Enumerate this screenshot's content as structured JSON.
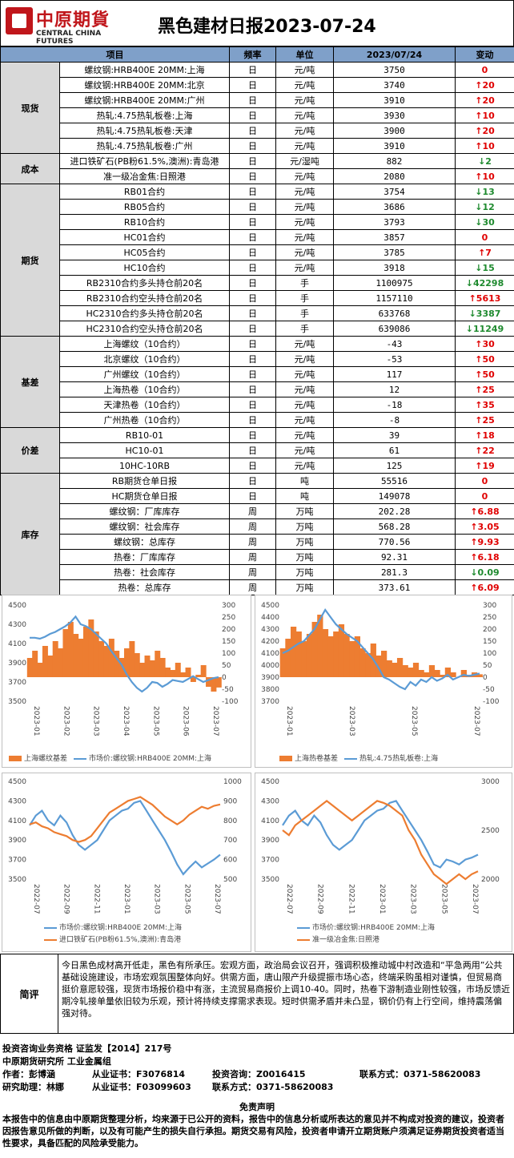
{
  "header": {
    "logo_cn": "中原期貨",
    "logo_en": "CENTRAL CHINA FUTURES",
    "title": "黑色建材日报2023-07-24"
  },
  "table": {
    "columns": [
      "项目",
      "频率",
      "单位",
      "2023/07/24",
      "变动"
    ],
    "groups": [
      {
        "category": "现货",
        "rows": [
          {
            "item": "螺纹钢:HRB400E 20MM:上海",
            "freq": "日",
            "unit": "元/吨",
            "value": "3750",
            "change": "0",
            "dir": "flat"
          },
          {
            "item": "螺纹钢:HRB400E 20MM:北京",
            "freq": "日",
            "unit": "元/吨",
            "value": "3740",
            "change": "20",
            "dir": "up"
          },
          {
            "item": "螺纹钢:HRB400E 20MM:广州",
            "freq": "日",
            "unit": "元/吨",
            "value": "3910",
            "change": "20",
            "dir": "up"
          },
          {
            "item": "热轧:4.75热轧板卷:上海",
            "freq": "日",
            "unit": "元/吨",
            "value": "3930",
            "change": "10",
            "dir": "up"
          },
          {
            "item": "热轧:4.75热轧板卷:天津",
            "freq": "日",
            "unit": "元/吨",
            "value": "3900",
            "change": "20",
            "dir": "up"
          },
          {
            "item": "热轧:4.75热轧板卷:广州",
            "freq": "日",
            "unit": "元/吨",
            "value": "3910",
            "change": "10",
            "dir": "up"
          }
        ]
      },
      {
        "category": "成本",
        "rows": [
          {
            "item": "进口铁矿石(PB粉61.5%,澳洲):青岛港",
            "freq": "日",
            "unit": "元/湿吨",
            "value": "882",
            "change": "2",
            "dir": "down"
          },
          {
            "item": "准一级冶金焦:日照港",
            "freq": "日",
            "unit": "元/吨",
            "value": "2080",
            "change": "10",
            "dir": "up"
          }
        ]
      },
      {
        "category": "期货",
        "rows": [
          {
            "item": "RB01合约",
            "freq": "日",
            "unit": "元/吨",
            "value": "3754",
            "change": "13",
            "dir": "down"
          },
          {
            "item": "RB05合约",
            "freq": "日",
            "unit": "元/吨",
            "value": "3686",
            "change": "12",
            "dir": "down"
          },
          {
            "item": "RB10合约",
            "freq": "日",
            "unit": "元/吨",
            "value": "3793",
            "change": "30",
            "dir": "down"
          },
          {
            "item": "HC01合约",
            "freq": "日",
            "unit": "元/吨",
            "value": "3857",
            "change": "0",
            "dir": "flat"
          },
          {
            "item": "HC05合约",
            "freq": "日",
            "unit": "元/吨",
            "value": "3785",
            "change": "7",
            "dir": "up"
          },
          {
            "item": "HC10合约",
            "freq": "日",
            "unit": "元/吨",
            "value": "3918",
            "change": "15",
            "dir": "down"
          },
          {
            "item": "RB2310合约多头持仓前20名",
            "freq": "日",
            "unit": "手",
            "value": "1100975",
            "change": "42298",
            "dir": "down"
          },
          {
            "item": "RB2310合约空头持仓前20名",
            "freq": "日",
            "unit": "手",
            "value": "1157110",
            "change": "5613",
            "dir": "up"
          },
          {
            "item": "HC2310合约多头持仓前20名",
            "freq": "日",
            "unit": "手",
            "value": "633768",
            "change": "3387",
            "dir": "down"
          },
          {
            "item": "HC2310合约空头持仓前20名",
            "freq": "日",
            "unit": "手",
            "value": "639086",
            "change": "11249",
            "dir": "down"
          }
        ]
      },
      {
        "category": "基差",
        "rows": [
          {
            "item": "上海螺纹（10合约）",
            "freq": "日",
            "unit": "元/吨",
            "value": "-43",
            "change": "30",
            "dir": "up"
          },
          {
            "item": "北京螺纹（10合约）",
            "freq": "日",
            "unit": "元/吨",
            "value": "-53",
            "change": "50",
            "dir": "up"
          },
          {
            "item": "广州螺纹（10合约）",
            "freq": "日",
            "unit": "元/吨",
            "value": "117",
            "change": "50",
            "dir": "up"
          },
          {
            "item": "上海热卷（10合约）",
            "freq": "日",
            "unit": "元/吨",
            "value": "12",
            "change": "25",
            "dir": "up"
          },
          {
            "item": "天津热卷（10合约）",
            "freq": "日",
            "unit": "元/吨",
            "value": "-18",
            "change": "35",
            "dir": "up"
          },
          {
            "item": "广州热卷（10合约）",
            "freq": "日",
            "unit": "元/吨",
            "value": "-8",
            "change": "25",
            "dir": "up"
          }
        ]
      },
      {
        "category": "价差",
        "rows": [
          {
            "item": "RB10-01",
            "freq": "日",
            "unit": "元/吨",
            "value": "39",
            "change": "18",
            "dir": "up"
          },
          {
            "item": "HC10-01",
            "freq": "日",
            "unit": "元/吨",
            "value": "61",
            "change": "22",
            "dir": "up"
          },
          {
            "item": "10HC-10RB",
            "freq": "日",
            "unit": "元/吨",
            "value": "125",
            "change": "19",
            "dir": "up"
          }
        ]
      },
      {
        "category": "库存",
        "rows": [
          {
            "item": "RB期货仓单日报",
            "freq": "日",
            "unit": "吨",
            "value": "55516",
            "change": "0",
            "dir": "flat"
          },
          {
            "item": "HC期货仓单日报",
            "freq": "日",
            "unit": "吨",
            "value": "149078",
            "change": "0",
            "dir": "flat"
          },
          {
            "item": "螺纹钢：厂库库存",
            "freq": "周",
            "unit": "万吨",
            "value": "202.28",
            "change": "6.88",
            "dir": "up"
          },
          {
            "item": "螺纹钢：社会库存",
            "freq": "周",
            "unit": "万吨",
            "value": "568.28",
            "change": "3.05",
            "dir": "up"
          },
          {
            "item": "螺纹钢：总库存",
            "freq": "周",
            "unit": "万吨",
            "value": "770.56",
            "change": "9.93",
            "dir": "up"
          },
          {
            "item": "热卷：厂库库存",
            "freq": "周",
            "unit": "万吨",
            "value": "92.31",
            "change": "6.18",
            "dir": "up"
          },
          {
            "item": "热卷：社会库存",
            "freq": "周",
            "unit": "万吨",
            "value": "281.3",
            "change": "0.09",
            "dir": "down"
          },
          {
            "item": "热卷：总库存",
            "freq": "周",
            "unit": "万吨",
            "value": "373.61",
            "change": "6.09",
            "dir": "up"
          }
        ]
      }
    ]
  },
  "colors": {
    "orange": "#ed7d31",
    "blue": "#5b9bd5",
    "up": "#e00000",
    "down": "#1e8a2e",
    "header_bg": "#7fa0c9"
  },
  "chart_data": [
    {
      "type": "area",
      "left_axis_ticks": [
        "4500",
        "4300",
        "4100",
        "3900",
        "3700",
        "3500"
      ],
      "right_axis_ticks": [
        "300",
        "250",
        "200",
        "150",
        "100",
        "50",
        "0",
        "-50",
        "-100"
      ],
      "x_ticks": [
        "2023-01",
        "2023-02",
        "2023-03",
        "2023-04",
        "2023-05",
        "2023-06",
        "2023-07"
      ],
      "ylim_left": [
        3500,
        4500
      ],
      "ylim_right": [
        -100,
        300
      ],
      "series": [
        {
          "name": "上海螺纹基差",
          "kind": "area",
          "axis": "right",
          "color": "#ed7d31",
          "values": [
            80,
            110,
            60,
            130,
            90,
            150,
            120,
            200,
            230,
            180,
            160,
            210,
            240,
            190,
            150,
            130,
            160,
            110,
            80,
            120,
            150,
            100,
            60,
            90,
            70,
            110,
            80,
            40,
            30,
            60,
            20,
            40,
            -20,
            10,
            50,
            -40,
            -60,
            -43
          ]
        },
        {
          "name": "市场价:螺纹钢:HRB400E 20MM:上海",
          "kind": "line",
          "axis": "left",
          "color": "#5b9bd5",
          "values": [
            4160,
            4160,
            4150,
            4170,
            4200,
            4220,
            4250,
            4280,
            4320,
            4380,
            4300,
            4280,
            4250,
            4200,
            4150,
            4100,
            4020,
            3950,
            3880,
            3780,
            3700,
            3640,
            3600,
            3640,
            3700,
            3690,
            3650,
            3680,
            3720,
            3710,
            3700,
            3730,
            3760,
            3730,
            3700,
            3720,
            3740,
            3750
          ]
        }
      ]
    },
    {
      "type": "area",
      "left_axis_ticks": [
        "4500",
        "4400",
        "4300",
        "4200",
        "4100",
        "4000",
        "3900",
        "3800",
        "3700"
      ],
      "right_axis_ticks": [
        "300",
        "250",
        "200",
        "150",
        "100",
        "50",
        "0",
        "-50",
        "-100"
      ],
      "x_ticks": [
        "2023-01",
        "2023-03",
        "2023-05",
        "2023-07"
      ],
      "ylim_left": [
        3700,
        4500
      ],
      "ylim_right": [
        -100,
        300
      ],
      "series": [
        {
          "name": "上海热卷基差",
          "kind": "area",
          "axis": "right",
          "color": "#ed7d31",
          "values": [
            120,
            160,
            210,
            190,
            150,
            180,
            230,
            260,
            200,
            170,
            190,
            220,
            180,
            150,
            170,
            120,
            100,
            140,
            90,
            110,
            70,
            60,
            80,
            50,
            40,
            60,
            30,
            20,
            50,
            30,
            10,
            40,
            20,
            0,
            30,
            10,
            20,
            12
          ]
        },
        {
          "name": "热轧:4.75热轧板卷:上海",
          "kind": "line",
          "axis": "left",
          "color": "#5b9bd5",
          "values": [
            4100,
            4120,
            4150,
            4180,
            4200,
            4250,
            4300,
            4380,
            4460,
            4400,
            4340,
            4300,
            4260,
            4230,
            4200,
            4150,
            4100,
            4050,
            3980,
            3900,
            3880,
            3850,
            3820,
            3800,
            3860,
            3830,
            3880,
            3860,
            3900,
            3870,
            3890,
            3920,
            3880,
            3900,
            3920,
            3910,
            3920,
            3930
          ]
        }
      ]
    },
    {
      "type": "line",
      "left_axis_ticks": [
        "4500",
        "4300",
        "4100",
        "3900",
        "3700",
        "3500"
      ],
      "right_axis_ticks": [
        "1000",
        "900",
        "800",
        "700",
        "600",
        "500"
      ],
      "x_ticks": [
        "2022-07",
        "2022-09",
        "2022-11",
        "2023-01",
        "2023-03",
        "2023-05",
        "2023-07"
      ],
      "ylim_left": [
        3500,
        4500
      ],
      "ylim_right": [
        500,
        1000
      ],
      "series": [
        {
          "name": "市场价:螺纹钢:HRB400E 20MM:上海",
          "kind": "line",
          "axis": "left",
          "color": "#5b9bd5",
          "values": [
            4050,
            4150,
            4200,
            4100,
            4050,
            4150,
            4080,
            3950,
            3850,
            3800,
            3850,
            3900,
            4000,
            4100,
            4150,
            4200,
            4220,
            4280,
            4300,
            4200,
            4100,
            4000,
            3900,
            3780,
            3650,
            3550,
            3620,
            3680,
            3620,
            3660,
            3700,
            3750
          ]
        },
        {
          "name": "进口铁矿石(PB粉61.5%,澳洲):青岛港",
          "kind": "line",
          "axis": "right",
          "color": "#ed7d31",
          "values": [
            780,
            790,
            770,
            760,
            740,
            730,
            720,
            700,
            690,
            700,
            720,
            760,
            800,
            840,
            860,
            880,
            900,
            910,
            920,
            900,
            880,
            850,
            820,
            800,
            780,
            800,
            830,
            850,
            870,
            860,
            875,
            882
          ]
        }
      ]
    },
    {
      "type": "line",
      "left_axis_ticks": [
        "4500",
        "4300",
        "4100",
        "3900",
        "3700",
        "3500"
      ],
      "right_axis_ticks": [
        "3000",
        "2500",
        "2000"
      ],
      "x_ticks": [
        "2022-07",
        "2022-09",
        "2022-11",
        "2023-01",
        "2023-03",
        "2023-05",
        "2023-07"
      ],
      "ylim_left": [
        3500,
        4500
      ],
      "ylim_right": [
        2000,
        3000
      ],
      "series": [
        {
          "name": "市场价:螺纹钢:HRB400E 20MM:上海",
          "kind": "line",
          "axis": "left",
          "color": "#5b9bd5",
          "values": [
            4050,
            4150,
            4200,
            4100,
            4050,
            4150,
            4080,
            3950,
            3850,
            3800,
            3850,
            3900,
            4000,
            4100,
            4150,
            4200,
            4220,
            4280,
            4300,
            4200,
            4100,
            4000,
            3900,
            3780,
            3650,
            3620,
            3700,
            3680,
            3650,
            3700,
            3720,
            3750
          ]
        },
        {
          "name": "准一级冶金焦:日照港",
          "kind": "line",
          "axis": "right",
          "color": "#ed7d31",
          "values": [
            2500,
            2450,
            2550,
            2600,
            2650,
            2700,
            2750,
            2800,
            2750,
            2700,
            2650,
            2600,
            2650,
            2700,
            2750,
            2800,
            2780,
            2750,
            2700,
            2650,
            2500,
            2400,
            2250,
            2150,
            2050,
            2000,
            1950,
            2000,
            2050,
            2000,
            2050,
            2080
          ]
        }
      ]
    }
  ],
  "comment": {
    "label": "简评",
    "text": "今日黑色成材高开低走，黑色有所承压。宏观方面，政治局会议召开，强调积极推动城中村改造和“平急两用”公共基础设施建设，市场宏观氛围整体向好。供需方面，唐山限产升级提振市场心态，终端采购虽相对谨慎，但贸易商挺价意愿较强，现货市场报价稳中有涨，主流贸易商报价上调10-40。同时，热卷下游制造业刚性较强，市场反馈近期冷轧接单量依旧较为乐观，预计将持续支撑需求表现。短时供需矛盾并未凸显，钢价仍有上行空间，维持震荡偏强对待。"
  },
  "footer": {
    "qualification": "投资咨询业务资格   证监发【2014】217号",
    "org": "中原期货研究所    工业金属组",
    "author_label": "作者：彭博涵",
    "author_cert": "从业证书：F3076814",
    "author_consult": "投资咨询：Z0016415",
    "author_contact": "联系方式：0371-58620083",
    "assistant_label": "研究助理：林娜",
    "assistant_cert": "从业证书：F03099603",
    "assistant_contact": "联系方式：0371-58620083",
    "disclaimer_title": "免责声明",
    "disclaimer_text": "本报告中的信息由中原期货整理分析，均来源于已公开的资料，报告中的信息分析或所表达的意见并不构成对投资的建议，投资者因报告意见所做的判断，以及有可能产生的损失自行承担。期货交易有风险，投资者申请开立期货账户须满足证券期货投资者适当性要求，具备匹配的风险承受能力。"
  }
}
